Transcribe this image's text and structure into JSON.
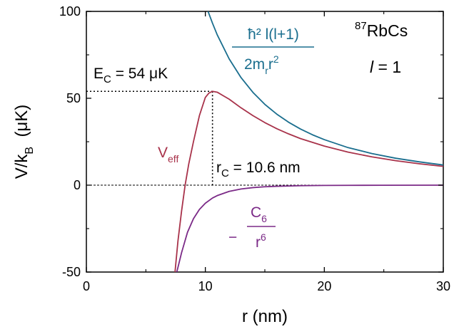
{
  "chart_data": {
    "type": "line",
    "x_axis": {
      "label_main": "r (nm)",
      "lim": [
        0,
        30
      ],
      "ticks": [
        0,
        10,
        20,
        30
      ],
      "tick_labels": [
        "0",
        "10",
        "20",
        "30"
      ]
    },
    "y_axis": {
      "label_main": "V/k",
      "label_sub": "B",
      "label_tail": "  (μK)",
      "lim": [
        -50,
        100
      ],
      "ticks": [
        -50,
        0,
        50,
        100
      ],
      "tick_labels": [
        "-50",
        "0",
        "50",
        "100"
      ]
    },
    "series": [
      {
        "key": "centrifugal",
        "color": "#1a6e8e",
        "label_parts": {
          "numerator": "ħ² l(l+1)",
          "denominator": "2m",
          "den_sub": "r",
          "den_tail": "r",
          "den_sup": "2"
        },
        "x": [
          10.2,
          10.6,
          11,
          12,
          13,
          14,
          15,
          16,
          17,
          18,
          19,
          20,
          22,
          24,
          26,
          28,
          30
        ],
        "y": [
          100.5,
          93.2,
          86.5,
          72.7,
          61.9,
          53.4,
          46.5,
          40.9,
          36.2,
          32.3,
          29.0,
          26.2,
          21.6,
          18.2,
          15.5,
          13.4,
          11.6
        ]
      },
      {
        "key": "van-der-waals",
        "color": "#7b2a87",
        "label_parts": {
          "prefix": "−",
          "numerator": "C",
          "num_sub": "6",
          "denominator": "r",
          "den_sup": "6"
        },
        "x": [
          7.6,
          8,
          8.5,
          9,
          9.5,
          10,
          10.6,
          11,
          12,
          13,
          14,
          15,
          16,
          18,
          20,
          22,
          25,
          30
        ],
        "y": [
          -50,
          -38.9,
          -27.1,
          -19.3,
          -14.0,
          -10.4,
          -7.4,
          -6.0,
          -3.6,
          -2.2,
          -1.41,
          -0.93,
          -0.63,
          -0.31,
          -0.17,
          -0.09,
          -0.04,
          -0.01
        ]
      },
      {
        "key": "effective",
        "color": "#a8324a",
        "label_main": "V",
        "label_sub": "eff",
        "x": [
          7.45,
          7.7,
          8,
          8.3,
          8.6,
          9,
          9.5,
          10,
          10.3,
          10.6,
          11,
          11.5,
          12,
          13,
          14,
          15,
          16,
          17,
          18,
          20,
          22,
          24,
          26,
          28,
          30
        ],
        "y": [
          -50,
          -32,
          -15,
          0,
          12,
          25,
          40,
          50.5,
          53,
          54,
          53.5,
          51.5,
          49.5,
          44.5,
          40,
          36,
          32.5,
          29.5,
          26.8,
          22.5,
          19.0,
          16.3,
          14.1,
          12.3,
          10.8
        ]
      }
    ],
    "annotations": {
      "species_sup": "87",
      "species": "RbCs",
      "l_symbol": "l",
      "l_value": " = 1",
      "ec_main": "E",
      "ec_sub": "C",
      "ec_value": " = 54 μK",
      "rc_main": "r",
      "rc_sub": "C",
      "rc_value": " = 10.6 nm"
    },
    "barrier_point": {
      "x": 10.6,
      "y": 54
    }
  }
}
